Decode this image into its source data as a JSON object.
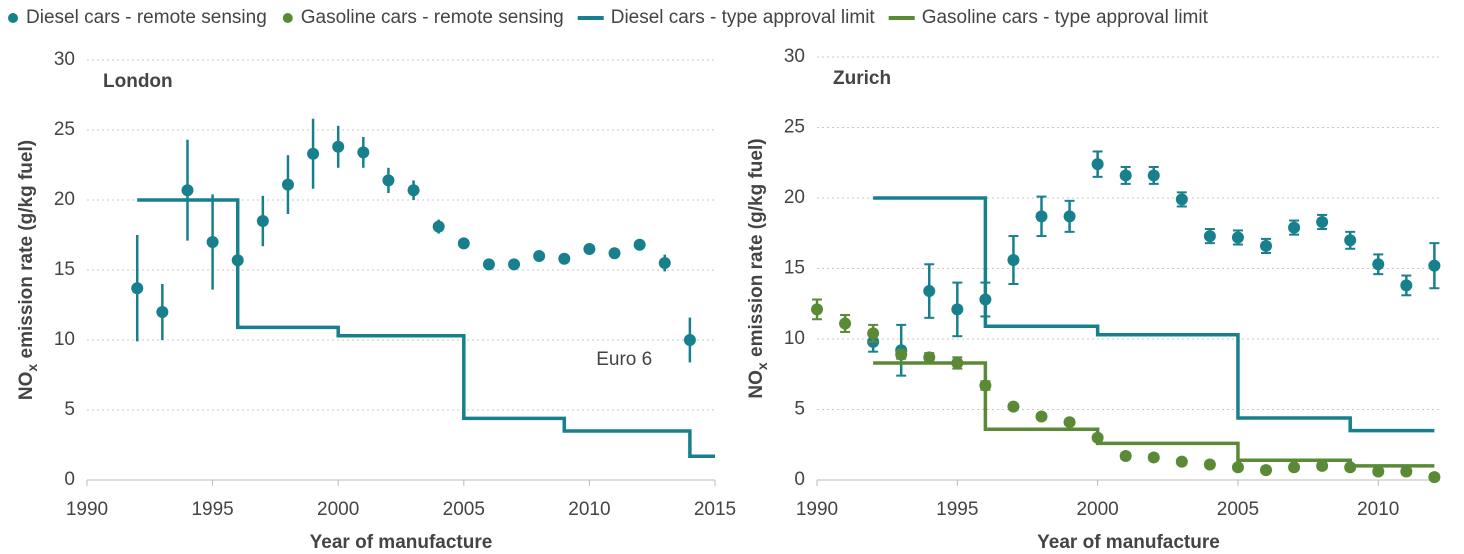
{
  "legend_order": [
    0,
    1,
    2,
    3
  ],
  "chart_data": [
    {
      "type": "scatter",
      "panel_label": "London",
      "x_label": "Year of manufacture",
      "y_label": {
        "main": "NO",
        "sub": "x",
        "rest": " emission rate (g/kg fuel)"
      },
      "xlim": [
        1990,
        2015
      ],
      "xticks": [
        1990,
        1995,
        2000,
        2005,
        2010,
        2015
      ],
      "ylim": [
        0,
        30
      ],
      "yticks": [
        0,
        5,
        10,
        15,
        20,
        25,
        30
      ],
      "grid": true,
      "annotation": {
        "text": "Euro 6",
        "x": 2012.5,
        "y": 10.0
      },
      "series": [
        {
          "style": "points",
          "color": "#17808c",
          "x": [
            1992,
            1993,
            1994,
            1995,
            1996,
            1997,
            1998,
            1999,
            2000,
            2001,
            2002,
            2003,
            2004,
            2005,
            2006,
            2007,
            2008,
            2009,
            2010,
            2011,
            2012,
            2013,
            2014
          ],
          "values": [
            13.7,
            12.0,
            20.7,
            17.0,
            15.7,
            18.5,
            21.1,
            23.3,
            23.8,
            23.4,
            21.4,
            20.7,
            18.1,
            16.9,
            15.4,
            15.4,
            16.0,
            15.8,
            16.5,
            16.2,
            16.8,
            15.5,
            10.0
          ],
          "errors": [
            3.8,
            2.0,
            3.6,
            3.4,
            0.5,
            1.8,
            2.1,
            2.5,
            1.5,
            1.1,
            0.9,
            0.7,
            0.5,
            0.4,
            0.4,
            0.3,
            0.3,
            0.3,
            0.3,
            0.3,
            0.3,
            0.6,
            1.6
          ]
        },
        {
          "style": "step",
          "color": "#17808c",
          "x": [
            1992,
            1996,
            2000,
            2005,
            2009,
            2014,
            2015
          ],
          "values": [
            20,
            10.9,
            10.3,
            4.4,
            3.5,
            1.7,
            1.7
          ]
        }
      ]
    },
    {
      "type": "scatter",
      "panel_label": "Zurich",
      "x_label": "Year of manufacture",
      "y_label": {
        "main": "NO",
        "sub": "x",
        "rest": " emission rate (g/kg fuel)"
      },
      "xlim": [
        1990,
        2012.2
      ],
      "xticks": [
        1990,
        1995,
        2000,
        2005,
        2010
      ],
      "ylim": [
        0,
        30
      ],
      "yticks": [
        0,
        5,
        10,
        15,
        20,
        25,
        30
      ],
      "grid": true,
      "series": [
        {
          "name": "Diesel cars - remote sensing",
          "style": "points",
          "color": "#17808c",
          "x": [
            1992,
            1993,
            1994,
            1995,
            1996,
            1997,
            1998,
            1999,
            2000,
            2001,
            2002,
            2003,
            2004,
            2005,
            2006,
            2007,
            2008,
            2009,
            2010,
            2011,
            2012
          ],
          "values": [
            9.8,
            9.2,
            13.4,
            12.1,
            12.8,
            15.6,
            18.7,
            18.7,
            22.4,
            21.6,
            21.6,
            19.9,
            17.3,
            17.2,
            16.6,
            17.9,
            18.3,
            17.0,
            15.3,
            13.8,
            15.2
          ],
          "errors": [
            0.7,
            1.8,
            1.9,
            1.9,
            1.2,
            1.7,
            1.4,
            1.1,
            0.9,
            0.6,
            0.6,
            0.5,
            0.5,
            0.5,
            0.5,
            0.5,
            0.5,
            0.6,
            0.7,
            0.7,
            1.6
          ]
        },
        {
          "name": "Gasoline cars - remote sensing",
          "style": "points",
          "color": "#5b8a37",
          "x": [
            1990,
            1991,
            1992,
            1993,
            1994,
            1995,
            1996,
            1997,
            1998,
            1999,
            2000,
            2001,
            2002,
            2003,
            2004,
            2005,
            2006,
            2007,
            2008,
            2009,
            2010,
            2011,
            2012
          ],
          "values": [
            12.1,
            11.1,
            10.4,
            8.9,
            8.7,
            8.3,
            6.7,
            5.2,
            4.5,
            4.1,
            3.0,
            1.7,
            1.6,
            1.3,
            1.1,
            0.9,
            0.7,
            0.9,
            1.0,
            0.9,
            0.6,
            0.6,
            0.2
          ],
          "errors": [
            0.7,
            0.6,
            0.6,
            0.3,
            0.3,
            0.4,
            0.3,
            0.2,
            0.2,
            0.2,
            0.2,
            0.2,
            0.2,
            0.2,
            0.2,
            0.2,
            0.2,
            0.2,
            0.2,
            0.2,
            0.2,
            0.2,
            0.2
          ]
        },
        {
          "name": "Diesel cars - type approval limit",
          "style": "step",
          "color": "#17808c",
          "x": [
            1992,
            1996,
            2000,
            2005,
            2009,
            2012
          ],
          "values": [
            20,
            10.9,
            10.3,
            4.4,
            3.5,
            3.5
          ]
        },
        {
          "name": "Gasoline cars - type approval limit",
          "style": "step",
          "color": "#5b8a37",
          "x": [
            1992,
            1996,
            2000,
            2005,
            2009,
            2012
          ],
          "values": [
            8.3,
            3.6,
            2.6,
            1.4,
            1.0,
            1.0
          ]
        }
      ]
    }
  ]
}
